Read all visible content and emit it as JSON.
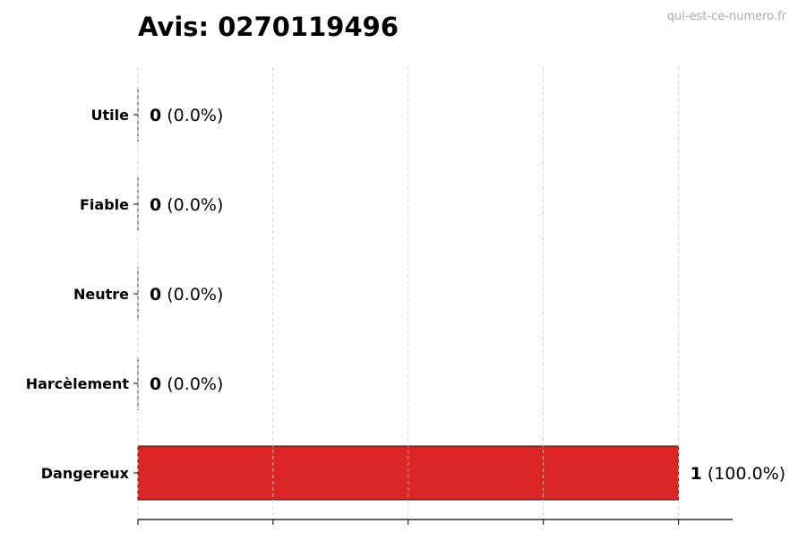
{
  "chart_data": {
    "type": "bar",
    "orientation": "horizontal",
    "title": "Avis: 0270119496",
    "watermark": "qui-est-ce-numero.fr",
    "categories": [
      "Utile",
      "Fiable",
      "Neutre",
      "Harcèlement",
      "Dangereux"
    ],
    "values": [
      0,
      0,
      0,
      0,
      1
    ],
    "value_labels": [
      "0",
      "0",
      "0",
      "0",
      "1"
    ],
    "percent_labels": [
      "(0.0%)",
      "(0.0%)",
      "(0.0%)",
      "(0.0%)",
      "(100.0%)"
    ],
    "xlim": [
      0,
      1.1
    ],
    "xticks": [
      0,
      0.25,
      0.5,
      0.75,
      1
    ],
    "xtick_labels_shown": false,
    "grid": "x, dashed",
    "colors": {
      "bar": "#dc2626",
      "edge": "#1a1a1a",
      "grid": "#cccccc",
      "watermark": "#aaaaaa"
    }
  }
}
